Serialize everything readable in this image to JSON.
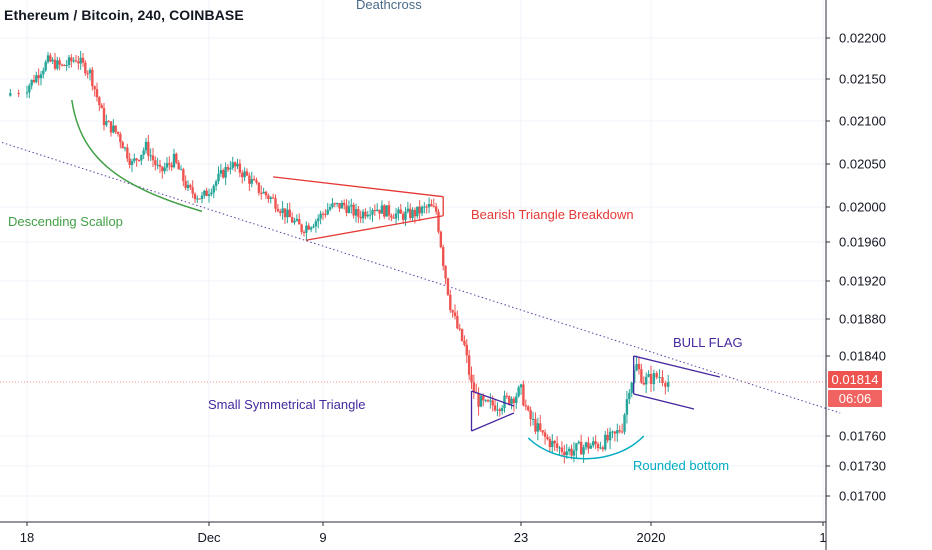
{
  "header": {
    "title": "Ethereum / Bitcoin, 240, COINBASE"
  },
  "colors": {
    "up": "#26a69a",
    "down": "#ef5350",
    "grid": "#f0f3fa",
    "axis_text": "#131722",
    "trendline_dotted": "#5b3fa6",
    "scallop": "#43a047",
    "bearish_triangle": "#e53935",
    "symmetrical_triangle": "#4527a0",
    "bull_flag": "#4527a0",
    "rounded_bottom": "#00acc1",
    "price_line": "#ef9a9a"
  },
  "annotations": {
    "deathcross": "Deathcross",
    "descending_scallop": "Descending Scallop",
    "bearish_triangle_breakdown": "Bearish Triangle Breakdown",
    "bull_flag": "BULL FLAG",
    "small_symmetrical_triangle": "Small Symmetrical Triangle",
    "rounded_bottom": "Rounded bottom"
  },
  "price_axis": {
    "ticks": [
      "0.02200",
      "0.02150",
      "0.02100",
      "0.02050",
      "0.02000",
      "0.01960",
      "0.01920",
      "0.01880",
      "0.01840",
      "0.01760",
      "0.01730",
      "0.01700"
    ],
    "last_price": "0.01814",
    "countdown": "06:06"
  },
  "time_axis": {
    "ticks": [
      "18",
      "Dec",
      "9",
      "23",
      "2020",
      "1"
    ]
  },
  "chart_data": {
    "type": "candlestick",
    "title": "Ethereum / Bitcoin, 240, COINBASE",
    "x_unit": "date (day index from Nov 18, 2019)",
    "y_unit": "ETH/BTC price",
    "ylim": [
      0.01685,
      0.0224
    ],
    "xlim": [
      -0.5,
      55
    ],
    "y_ticks": [
      0.022,
      0.0215,
      0.021,
      0.0205,
      0.02,
      0.0196,
      0.0192,
      0.0188,
      0.0184,
      0.0176,
      0.0173,
      0.017
    ],
    "x_ticks": [
      {
        "label": "18",
        "x": 0
      },
      {
        "label": "Dec",
        "x": 13
      },
      {
        "label": "9",
        "x": 21
      },
      {
        "label": "23",
        "x": 35
      },
      {
        "label": "2020",
        "x": 44
      },
      {
        "label": "1",
        "x": 54
      }
    ],
    "grid": true,
    "price_path": [
      [
        -0.5,
        0.0213
      ],
      [
        0.5,
        0.0215
      ],
      [
        1.5,
        0.02172
      ],
      [
        2.5,
        0.02165
      ],
      [
        3.5,
        0.02175
      ],
      [
        4.5,
        0.02158
      ],
      [
        5.5,
        0.021
      ],
      [
        6.5,
        0.02085
      ],
      [
        7.5,
        0.0205
      ],
      [
        8.5,
        0.0207
      ],
      [
        9.5,
        0.0204
      ],
      [
        10.5,
        0.02055
      ],
      [
        11.5,
        0.0202
      ],
      [
        12.5,
        0.0201
      ],
      [
        13.5,
        0.0203
      ],
      [
        14.5,
        0.0205
      ],
      [
        15.5,
        0.02038
      ],
      [
        16.5,
        0.0202
      ],
      [
        17.5,
        0.02008
      ],
      [
        18.5,
        0.0199
      ],
      [
        19.5,
        0.01975
      ],
      [
        20.5,
        0.01985
      ],
      [
        21.5,
        0.02
      ],
      [
        22.5,
        0.02002
      ],
      [
        23.5,
        0.0199
      ],
      [
        24.5,
        0.02
      ],
      [
        25.5,
        0.01995
      ],
      [
        26.5,
        0.0199
      ],
      [
        27.5,
        0.01993
      ],
      [
        28.5,
        0.02
      ],
      [
        29.0,
        0.01995
      ],
      [
        29.5,
        0.0194
      ],
      [
        30.0,
        0.01895
      ],
      [
        30.5,
        0.0187
      ],
      [
        31.0,
        0.0185
      ],
      [
        31.5,
        0.0181
      ],
      [
        32.0,
        0.01795
      ],
      [
        32.5,
        0.0179
      ],
      [
        33.5,
        0.01792
      ],
      [
        34.5,
        0.018
      ],
      [
        35.0,
        0.01805
      ],
      [
        35.5,
        0.0178
      ],
      [
        36.5,
        0.0176
      ],
      [
        37.5,
        0.01748
      ],
      [
        38.5,
        0.01745
      ],
      [
        39.5,
        0.0175
      ],
      [
        40.5,
        0.01752
      ],
      [
        41.5,
        0.0176
      ],
      [
        42.0,
        0.0177
      ],
      [
        42.5,
        0.0181
      ],
      [
        43.0,
        0.0183
      ],
      [
        43.5,
        0.01815
      ],
      [
        44.5,
        0.0182
      ],
      [
        45.0,
        0.01814
      ]
    ],
    "patterns": [
      {
        "name": "Descending Scallop",
        "type": "arc",
        "points": [
          [
            3.2,
            0.02125
          ],
          [
            3.8,
            0.0206
          ],
          [
            6.2,
            0.02025
          ],
          [
            12.5,
            0.01995
          ]
        ]
      },
      {
        "name": "Bearish Triangle Breakdown",
        "type": "triangle",
        "upper": [
          [
            17.5,
            0.02035
          ],
          [
            29.5,
            0.02012
          ]
        ],
        "lower": [
          [
            19.8,
            0.01962
          ],
          [
            29.5,
            0.0199
          ]
        ]
      },
      {
        "name": "Small Symmetrical Triangle",
        "type": "triangle",
        "upper": [
          [
            31.5,
            0.01805
          ],
          [
            34.5,
            0.0179
          ]
        ],
        "lower": [
          [
            31.5,
            0.01765
          ],
          [
            34.5,
            0.01783
          ]
        ],
        "vertical": [
          [
            31.5,
            0.01765
          ],
          [
            31.5,
            0.01805
          ]
        ]
      },
      {
        "name": "Rounded bottom",
        "type": "arc",
        "points": [
          [
            35.5,
            0.01758
          ],
          [
            37.5,
            0.0173
          ],
          [
            41.5,
            0.0173
          ],
          [
            43.5,
            0.0176
          ]
        ]
      },
      {
        "name": "BULL FLAG",
        "type": "flag",
        "upper": [
          [
            42.8,
            0.0184
          ],
          [
            48.0,
            0.01819
          ]
        ],
        "lower": [
          [
            42.8,
            0.01802
          ],
          [
            46.5,
            0.01787
          ]
        ],
        "pole": [
          [
            42.8,
            0.01802
          ],
          [
            42.8,
            0.0184
          ]
        ]
      }
    ],
    "dotted_trendline": [
      [
        -0.5,
        0.02075
      ],
      [
        55,
        0.01783
      ]
    ],
    "last_price_line": 0.01814
  }
}
